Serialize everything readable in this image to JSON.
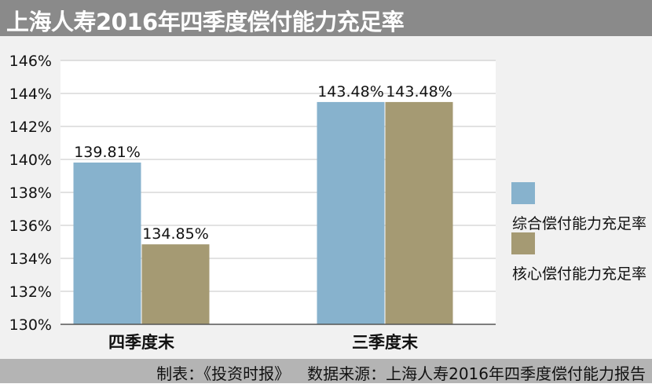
{
  "title": "上海人寿2016年四季度偿付能力充足率",
  "chart_data": {
    "type": "bar",
    "categories": [
      "四季度末",
      "三季度末"
    ],
    "series": [
      {
        "name": "综合偿付能力充足率",
        "values": [
          139.81,
          143.48
        ],
        "labels": [
          "139.81%",
          "143.48%"
        ],
        "color": "#87b2cd"
      },
      {
        "name": "核心偿付能力充足率",
        "values": [
          134.85,
          143.48
        ],
        "labels": [
          "134.85%",
          "143.48%"
        ],
        "color": "#a59a73"
      }
    ],
    "ylim": [
      130,
      146
    ],
    "yticks": [
      "146%",
      "144%",
      "142%",
      "140%",
      "138%",
      "136%",
      "134%",
      "132%",
      "130%"
    ],
    "ytick_values": [
      146,
      144,
      142,
      140,
      138,
      136,
      134,
      132,
      130
    ],
    "grid": true,
    "legend_position": "right"
  },
  "footer": {
    "maker": "制表：《投资时报》",
    "source": "数据来源：上海人寿2016年四季度偿付能力报告"
  }
}
